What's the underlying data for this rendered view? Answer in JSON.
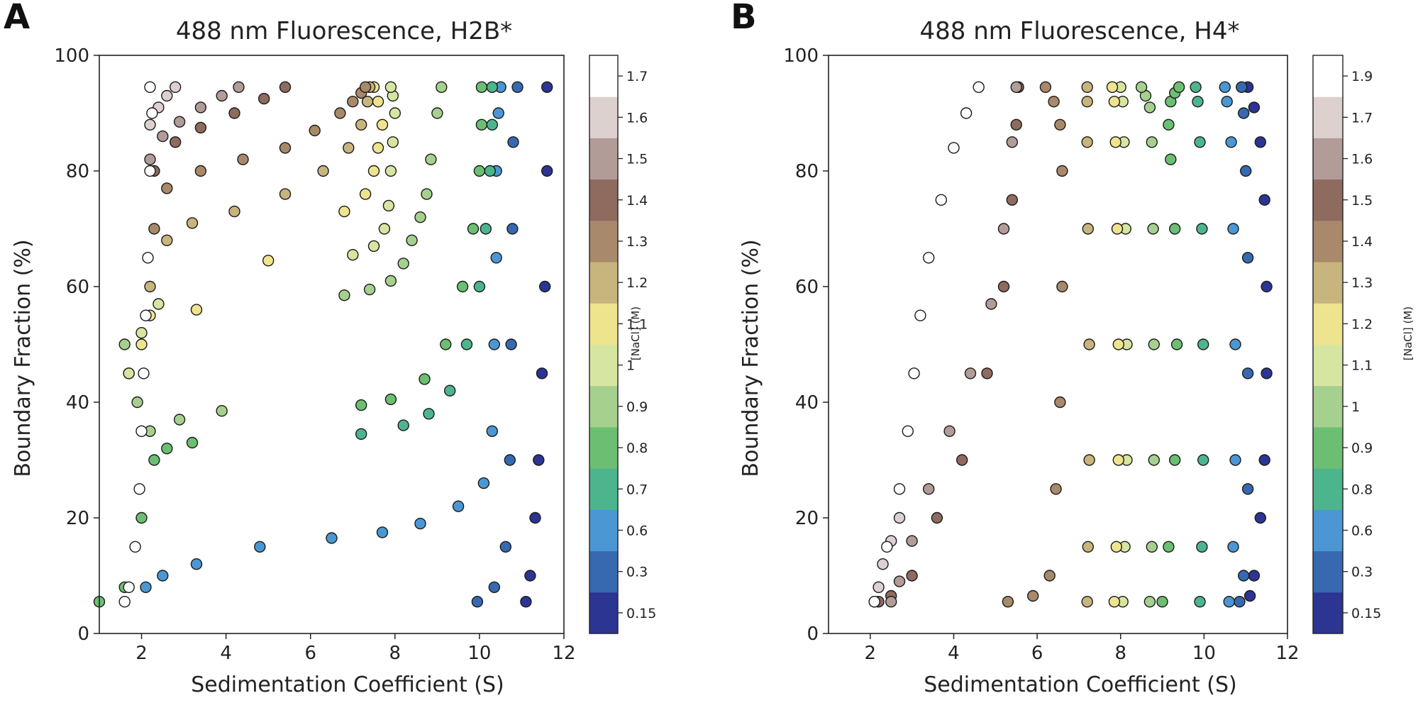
{
  "chart_data": [
    {
      "panel_label": "A",
      "type": "scatter",
      "title": "488 nm Fluorescence, H2B*",
      "xlabel": "Sedimentation Coefficient (S)",
      "ylabel": "Boundary Fraction (%)",
      "xlim": [
        1,
        12
      ],
      "ylim": [
        0,
        100
      ],
      "xticks": [
        2,
        4,
        6,
        8,
        10,
        12
      ],
      "yticks": [
        0,
        20,
        40,
        60,
        80,
        100
      ],
      "grid": false,
      "colorbar": {
        "label": "[NaCl] (M)",
        "levels": [
          "0.15",
          "0.3",
          "0.6",
          "0.7",
          "0.8",
          "0.9",
          "1",
          "1.1",
          "1.2",
          "1.3",
          "1.4",
          "1.5",
          "1.6",
          "1.7"
        ],
        "colors": [
          "#2c3592",
          "#3769b1",
          "#4b97d3",
          "#4db58d",
          "#6cbf72",
          "#a5d08e",
          "#d6e6a0",
          "#eee48e",
          "#c8b57d",
          "#a8896a",
          "#8e6a5f",
          "#b19c98",
          "#dcd1cf",
          "#ffffff"
        ]
      },
      "series": [
        {
          "salt": "0.15",
          "x": [
            11.1,
            11.2,
            11.32,
            11.4,
            11.48,
            11.55,
            11.6,
            11.6
          ],
          "y": [
            5.5,
            10,
            20,
            30,
            45,
            60,
            80,
            94.5
          ]
        },
        {
          "salt": "0.3",
          "x": [
            9.95,
            10.35,
            10.62,
            10.72,
            10.75,
            10.78,
            10.8,
            10.9
          ],
          "y": [
            5.5,
            8,
            15,
            30,
            50,
            70,
            85,
            94.5
          ]
        },
        {
          "salt": "0.6",
          "x": [
            2.1,
            2.5,
            3.3,
            4.8,
            6.5,
            7.7,
            8.6,
            9.5,
            10.1,
            10.3,
            10.35,
            10.4,
            10.4,
            10.45,
            10.5
          ],
          "y": [
            8,
            10,
            12,
            15,
            16.5,
            17.5,
            19,
            22,
            26,
            35,
            50,
            65,
            80,
            90,
            94.5
          ]
        },
        {
          "salt": "0.7",
          "x": [
            7.2,
            8.2,
            8.8,
            9.3,
            9.7,
            10.0,
            10.15,
            10.25,
            10.3,
            10.3
          ],
          "y": [
            34.5,
            36,
            38,
            42,
            50,
            60,
            70,
            80,
            88,
            94.5
          ]
        },
        {
          "salt": "0.8",
          "x": [
            1.0,
            1.6,
            2.0,
            2.3,
            2.6,
            3.2,
            7.2,
            7.9,
            8.7,
            9.2,
            9.6,
            9.85,
            10.0,
            10.05,
            10.05
          ],
          "y": [
            5.5,
            8,
            20,
            30,
            32,
            33,
            39.5,
            40.5,
            44,
            50,
            60,
            70,
            80,
            88,
            94.5
          ]
        },
        {
          "salt": "0.9",
          "x": [
            1.6,
            1.7,
            1.9,
            2.2,
            2.9,
            3.9,
            6.8,
            7.4,
            7.9,
            8.2,
            8.4,
            8.6,
            8.75,
            8.85,
            9.0,
            9.1
          ],
          "y": [
            50,
            45,
            40,
            35,
            37,
            38.5,
            58.5,
            59.5,
            61,
            64,
            68,
            72,
            76,
            82,
            90,
            94.5
          ]
        },
        {
          "salt": "1",
          "x": [
            1.7,
            2.0,
            2.4,
            7.0,
            7.5,
            7.75,
            7.85,
            7.9,
            7.95,
            8.0,
            7.95,
            7.9
          ],
          "y": [
            45,
            52,
            57,
            65.5,
            67,
            70,
            74,
            80,
            85,
            90,
            93,
            94.5
          ]
        },
        {
          "salt": "1.1",
          "x": [
            2.0,
            2.2,
            3.3,
            5.0,
            6.8,
            7.3,
            7.5,
            7.6,
            7.7,
            7.6,
            7.5
          ],
          "y": [
            50,
            55,
            56,
            64.5,
            73,
            76,
            80,
            84,
            88,
            92,
            94.5
          ]
        },
        {
          "salt": "1.2",
          "x": [
            2.2,
            2.6,
            3.2,
            4.2,
            5.4,
            6.3,
            6.9,
            7.2,
            7.35,
            7.4
          ],
          "y": [
            60,
            68,
            71,
            73,
            76,
            80,
            84,
            88,
            92,
            94.5
          ]
        },
        {
          "salt": "1.3",
          "x": [
            2.3,
            2.6,
            3.4,
            4.4,
            5.4,
            6.1,
            6.7,
            7.0,
            7.2,
            7.3
          ],
          "y": [
            70,
            77,
            80,
            82,
            84,
            87,
            90,
            92,
            93.5,
            94.5
          ]
        },
        {
          "salt": "1.4",
          "x": [
            2.3,
            2.8,
            3.4,
            4.2,
            4.9,
            5.4
          ],
          "y": [
            80,
            85,
            87.5,
            90,
            92.5,
            94.5
          ]
        },
        {
          "salt": "1.5",
          "x": [
            2.2,
            2.5,
            2.9,
            3.4,
            3.9,
            4.3
          ],
          "y": [
            82,
            86,
            88.5,
            91,
            93,
            94.5
          ]
        },
        {
          "salt": "1.6",
          "x": [
            2.2,
            2.4,
            2.6,
            2.8
          ],
          "y": [
            88,
            91,
            93,
            94.5
          ]
        },
        {
          "salt": "1.7",
          "x": [
            1.6,
            1.7,
            1.85,
            1.95,
            2.0,
            2.05,
            2.1,
            2.15,
            2.2,
            2.25,
            2.2
          ],
          "y": [
            5.5,
            8,
            15,
            25,
            35,
            45,
            55,
            65,
            80,
            90,
            94.5
          ]
        }
      ]
    },
    {
      "panel_label": "B",
      "type": "scatter",
      "title": "488 nm Fluorescence, H4*",
      "xlabel": "Sedimentation Coefficient (S)",
      "ylabel": "Boundary Fraction (%)",
      "xlim": [
        1,
        12
      ],
      "ylim": [
        0,
        100
      ],
      "xticks": [
        2,
        4,
        6,
        8,
        10,
        12
      ],
      "yticks": [
        0,
        20,
        40,
        60,
        80,
        100
      ],
      "grid": false,
      "colorbar": {
        "label": "[NaCl] (M)",
        "levels": [
          "0.15",
          "0.3",
          "0.6",
          "0.8",
          "0.9",
          "1",
          "1.1",
          "1.2",
          "1.3",
          "1.4",
          "1.5",
          "1.6",
          "1.7",
          "1.9"
        ],
        "colors": [
          "#2c3592",
          "#3769b1",
          "#4b97d3",
          "#4db58d",
          "#6cbf72",
          "#a5d08e",
          "#d6e6a0",
          "#eee48e",
          "#c8b57d",
          "#a8896a",
          "#8e6a5f",
          "#b19c98",
          "#dcd1cf",
          "#ffffff"
        ]
      },
      "series": [
        {
          "salt": "0.15",
          "x": [
            11.1,
            11.2,
            11.35,
            11.45,
            11.5,
            11.5,
            11.45,
            11.35,
            11.2,
            11.05
          ],
          "y": [
            6.5,
            10,
            20,
            30,
            45,
            60,
            75,
            85,
            91,
            94.5
          ]
        },
        {
          "salt": "0.3",
          "x": [
            10.85,
            10.95,
            11.05,
            11.05,
            11.05,
            11.0,
            10.95,
            10.9
          ],
          "y": [
            5.5,
            10,
            25,
            45,
            65,
            80,
            90,
            94.5
          ]
        },
        {
          "salt": "0.6",
          "x": [
            10.6,
            10.7,
            10.75,
            10.75,
            10.7,
            10.65,
            10.55,
            10.5
          ],
          "y": [
            5.5,
            15,
            30,
            50,
            70,
            85,
            92,
            94.5
          ]
        },
        {
          "salt": "0.8",
          "x": [
            9.9,
            9.95,
            9.98,
            9.98,
            9.95,
            9.9,
            9.85,
            9.8
          ],
          "y": [
            5.5,
            15,
            30,
            50,
            70,
            85,
            92,
            94.5
          ]
        },
        {
          "salt": "0.9",
          "x": [
            9.0,
            9.15,
            9.3,
            9.35,
            9.3,
            9.2,
            9.15,
            9.2,
            9.3,
            9.4
          ],
          "y": [
            5.5,
            15,
            30,
            50,
            70,
            82,
            88,
            92,
            93.5,
            94.5
          ]
        },
        {
          "salt": "1",
          "x": [
            8.7,
            8.75,
            8.8,
            8.8,
            8.78,
            8.75,
            8.7,
            8.6,
            8.5
          ],
          "y": [
            5.5,
            15,
            30,
            50,
            70,
            85,
            91,
            93,
            94.5
          ]
        },
        {
          "salt": "1.1",
          "x": [
            8.05,
            8.1,
            8.15,
            8.15,
            8.12,
            8.08,
            8.05,
            8.0
          ],
          "y": [
            5.5,
            15,
            30,
            50,
            70,
            85,
            92,
            94.5
          ]
        },
        {
          "salt": "1.2",
          "x": [
            7.85,
            7.9,
            7.95,
            7.95,
            7.92,
            7.88,
            7.85,
            7.8
          ],
          "y": [
            5.5,
            15,
            30,
            50,
            70,
            85,
            92,
            94.5
          ]
        },
        {
          "salt": "1.3",
          "x": [
            7.2,
            7.22,
            7.25,
            7.25,
            7.22,
            7.2,
            7.2,
            7.2
          ],
          "y": [
            5.5,
            15,
            30,
            50,
            70,
            85,
            92,
            94.5
          ]
        },
        {
          "salt": "1.4",
          "x": [
            5.3,
            5.9,
            6.3,
            6.45,
            6.55,
            6.6,
            6.6,
            6.55,
            6.4,
            6.2
          ],
          "y": [
            5.5,
            6.5,
            10,
            25,
            40,
            60,
            80,
            88,
            92,
            94.5
          ]
        },
        {
          "salt": "1.5",
          "x": [
            2.2,
            2.5,
            3.0,
            3.6,
            4.2,
            4.8,
            5.2,
            5.4,
            5.5,
            5.55
          ],
          "y": [
            5.5,
            6.5,
            10,
            20,
            30,
            45,
            60,
            75,
            88,
            94.5
          ]
        },
        {
          "salt": "1.6",
          "x": [
            2.5,
            2.7,
            3.0,
            3.4,
            3.9,
            4.4,
            4.9,
            5.2,
            5.4,
            5.5
          ],
          "y": [
            5.5,
            9,
            16,
            25,
            35,
            45,
            57,
            70,
            85,
            94.5
          ]
        },
        {
          "salt": "1.7",
          "x": [
            2.1,
            2.2,
            2.3,
            2.5,
            2.7
          ],
          "y": [
            5.5,
            8,
            12,
            16,
            20
          ]
        },
        {
          "salt": "1.9",
          "x": [
            2.1,
            2.4,
            2.7,
            2.9,
            3.05,
            3.2,
            3.4,
            3.7,
            4.0,
            4.3,
            4.6
          ],
          "y": [
            5.5,
            15,
            25,
            35,
            45,
            55,
            65,
            75,
            84,
            90,
            94.5
          ]
        }
      ]
    }
  ]
}
